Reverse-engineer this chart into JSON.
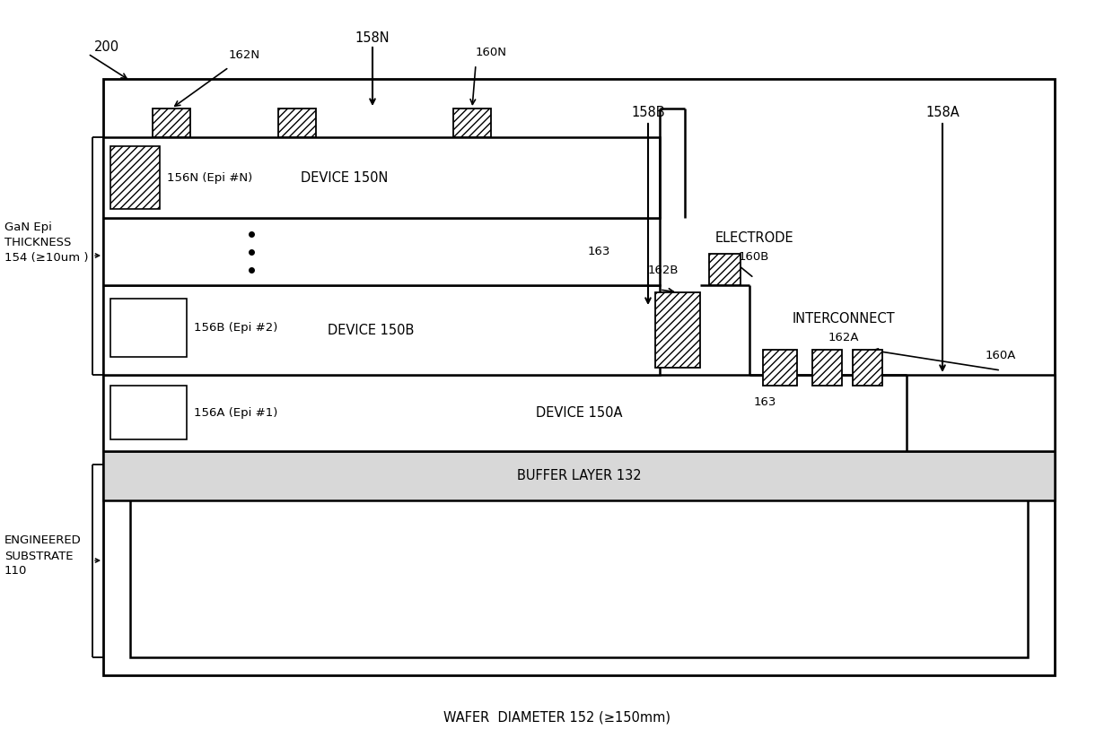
{
  "bg_color": "#ffffff",
  "fig_width": 12.4,
  "fig_height": 8.33,
  "title": "WAFER  DIAMETER 152 (≥150mm)",
  "label_200": "200",
  "label_gan_epi": "GaN Epi\nTHICKNESS\n154 (≥10um )",
  "label_eng_sub": "ENGINEERED\nSUBSTRATE\n110",
  "label_buffer": "BUFFER LAYER 132",
  "label_device_150A": "DEVICE 150A",
  "label_device_150B": "DEVICE 150B",
  "label_device_150N": "DEVICE 150N",
  "label_156A": "156A (Epi #1)",
  "label_156B": "156B (Epi #2)",
  "label_156N": "156N (Epi #N)",
  "label_158N": "158N",
  "label_158B": "158B",
  "label_158A": "158A",
  "label_160N": "160N",
  "label_160B": "160B",
  "label_160A": "160A",
  "label_162N": "162N",
  "label_162B": "162B",
  "label_162A": "162A",
  "label_163": "163",
  "label_electrode": "ELECTRODE",
  "label_interconnect": "INTERCONNECT"
}
